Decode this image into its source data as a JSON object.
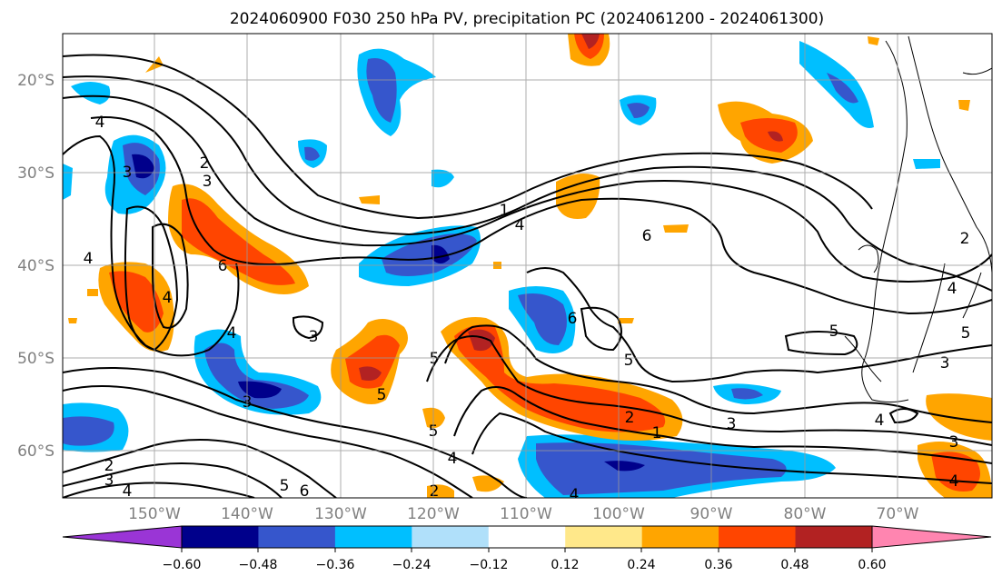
{
  "title": "2024060900 F030 250 hPa PV, precipitation PC (2024061200 - 2024061300)",
  "lat_labels": [
    "20°S",
    "30°S",
    "40°S",
    "50°S",
    "60°S"
  ],
  "lon_labels": [
    "150°W",
    "140°W",
    "130°W",
    "120°W",
    "110°W",
    "100°W",
    "90°W",
    "80°W",
    "70°W"
  ],
  "colorbar": {
    "tick_labels": [
      "−0.60",
      "−0.48",
      "−0.36",
      "−0.24",
      "−0.12",
      "0.12",
      "0.24",
      "0.36",
      "0.48",
      "0.60"
    ],
    "colors": [
      "#9a35d6",
      "#00008b",
      "#3656cc",
      "#00bfff",
      "#b0e0fa",
      "#ffffff",
      "#ffe88a",
      "#ffa500",
      "#ff4500",
      "#b22222",
      "#ff85b0"
    ]
  },
  "contour_labels": [
    "2",
    "3",
    "4",
    "3",
    "4",
    "4",
    "6",
    "4",
    "1",
    "4",
    "6",
    "2",
    "4",
    "3",
    "5",
    "6",
    "5",
    "5",
    "5",
    "5",
    "3",
    "4",
    "2",
    "1",
    "3",
    "3",
    "5",
    "2",
    "4",
    "4",
    "3",
    "5",
    "6",
    "2",
    "4",
    "3",
    "4"
  ]
}
